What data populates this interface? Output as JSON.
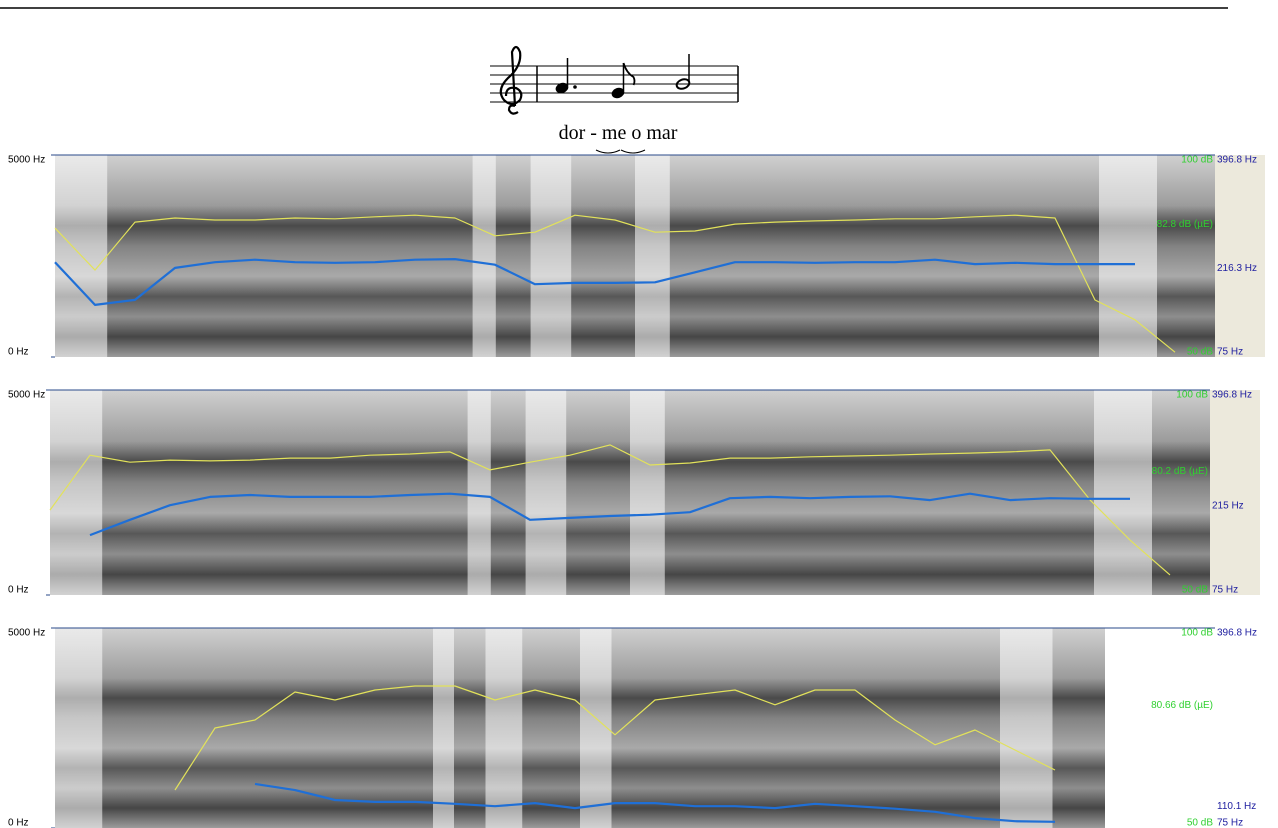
{
  "figure": {
    "lyrics": "dor - me o mar"
  },
  "chart_data": [
    {
      "type": "line",
      "freq_lim": [
        0,
        5000
      ],
      "freq_ticks": [
        {
          "value": 5000,
          "label": "5000 Hz"
        },
        {
          "value": 0,
          "label": "0 Hz"
        }
      ],
      "ylim": [
        75,
        396.8
      ],
      "yticks": [
        {
          "value": 396.8,
          "label": "396.8 Hz"
        },
        {
          "value": 216.3,
          "label": "216.3 Hz"
        },
        {
          "value": 75,
          "label": "75 Hz"
        }
      ],
      "y2lim": [
        50,
        100
      ],
      "y2ticks": [
        {
          "value": 100,
          "label": "100 dB"
        },
        {
          "value": 82.8,
          "label": "82.8 dB (µE)"
        },
        {
          "value": 50,
          "label": "50 dB"
        }
      ],
      "series": [
        {
          "color": "#e2e25a",
          "axis": "y2",
          "values": [
            81.9,
            71.5,
            83.4,
            84.4,
            83.9,
            83.9,
            84.4,
            84.2,
            84.7,
            85.1,
            84.4,
            80.0,
            80.9,
            85.1,
            83.9,
            80.9,
            81.2,
            82.9,
            83.4,
            83.7,
            83.9,
            84.2,
            84.2,
            84.7,
            85.1,
            84.4,
            64.1,
            59.2,
            51.2,
            null
          ]
        },
        {
          "color": "#1f6fd6",
          "values": [
            226,
            158,
            166,
            217,
            226,
            230,
            226,
            225,
            226,
            230,
            231,
            222,
            191,
            193,
            193,
            194,
            210,
            226,
            226,
            225,
            226,
            226,
            230,
            223,
            225,
            223,
            223,
            223,
            null,
            null
          ]
        }
      ]
    },
    {
      "type": "line",
      "freq_lim": [
        0,
        5000
      ],
      "freq_ticks": [
        {
          "value": 5000,
          "label": "5000 Hz"
        },
        {
          "value": 0,
          "label": "0 Hz"
        }
      ],
      "ylim": [
        75,
        396.8
      ],
      "yticks": [
        {
          "value": 396.8,
          "label": "396.8 Hz"
        },
        {
          "value": 215,
          "label": "215 Hz"
        },
        {
          "value": 75,
          "label": "75 Hz"
        }
      ],
      "y2lim": [
        50,
        100
      ],
      "y2ticks": [
        {
          "value": 100,
          "label": "100 dB"
        },
        {
          "value": 80.2,
          "label": "80.2 dB (µE)"
        },
        {
          "value": 50,
          "label": "50 dB"
        }
      ],
      "series": [
        {
          "color": "#e2e25a",
          "axis": "y2",
          "values": [
            70.7,
            84.1,
            82.4,
            82.9,
            82.7,
            82.9,
            83.4,
            83.4,
            84.1,
            84.4,
            84.9,
            80.5,
            82.4,
            84.1,
            86.6,
            81.7,
            82.2,
            83.4,
            83.4,
            83.7,
            83.9,
            84.1,
            84.4,
            84.6,
            84.9,
            85.4,
            73.2,
            63.4,
            54.9,
            null
          ]
        },
        {
          "color": "#1f6fd6",
          "values": [
            null,
            169,
            193,
            216,
            229,
            232,
            229,
            229,
            229,
            232,
            234,
            229,
            193,
            196,
            199,
            201,
            205,
            227,
            229,
            227,
            229,
            230,
            224,
            234,
            224,
            227,
            226,
            226,
            null,
            null
          ]
        }
      ]
    },
    {
      "type": "line",
      "freq_lim": [
        0,
        5000
      ],
      "freq_ticks": [
        {
          "value": 5000,
          "label": "5000 Hz"
        },
        {
          "value": 0,
          "label": "0 Hz"
        }
      ],
      "ylim": [
        75,
        396.8
      ],
      "yticks": [
        {
          "value": 396.8,
          "label": "396.8 Hz"
        },
        {
          "value": 110.1,
          "label": "110.1 Hz"
        },
        {
          "value": 75,
          "label": "75 Hz"
        }
      ],
      "y2lim": [
        50,
        100
      ],
      "y2ticks": [
        {
          "value": 100,
          "label": "100 dB"
        },
        {
          "value": 80.66,
          "label": "80.66 dB (µE)"
        },
        {
          "value": 50,
          "label": "50 dB"
        }
      ],
      "series": [
        {
          "color": "#e2e25a",
          "axis": "y2",
          "values": [
            null,
            null,
            null,
            59.5,
            75,
            77,
            84,
            82,
            84.5,
            85.5,
            85.5,
            82,
            84.5,
            82,
            73.3,
            82,
            83.3,
            84.5,
            80.8,
            84.5,
            84.5,
            77,
            70.8,
            74.5,
            69.5,
            64.5,
            null,
            null,
            null,
            null
          ]
        },
        {
          "color": "#1f6fd6",
          "values": [
            null,
            null,
            null,
            null,
            null,
            146,
            136,
            120,
            117,
            117,
            114,
            110,
            115,
            107,
            115,
            115,
            110,
            110,
            107,
            114,
            110,
            106,
            101,
            91,
            86,
            85,
            null,
            null,
            null,
            null
          ]
        }
      ]
    }
  ]
}
